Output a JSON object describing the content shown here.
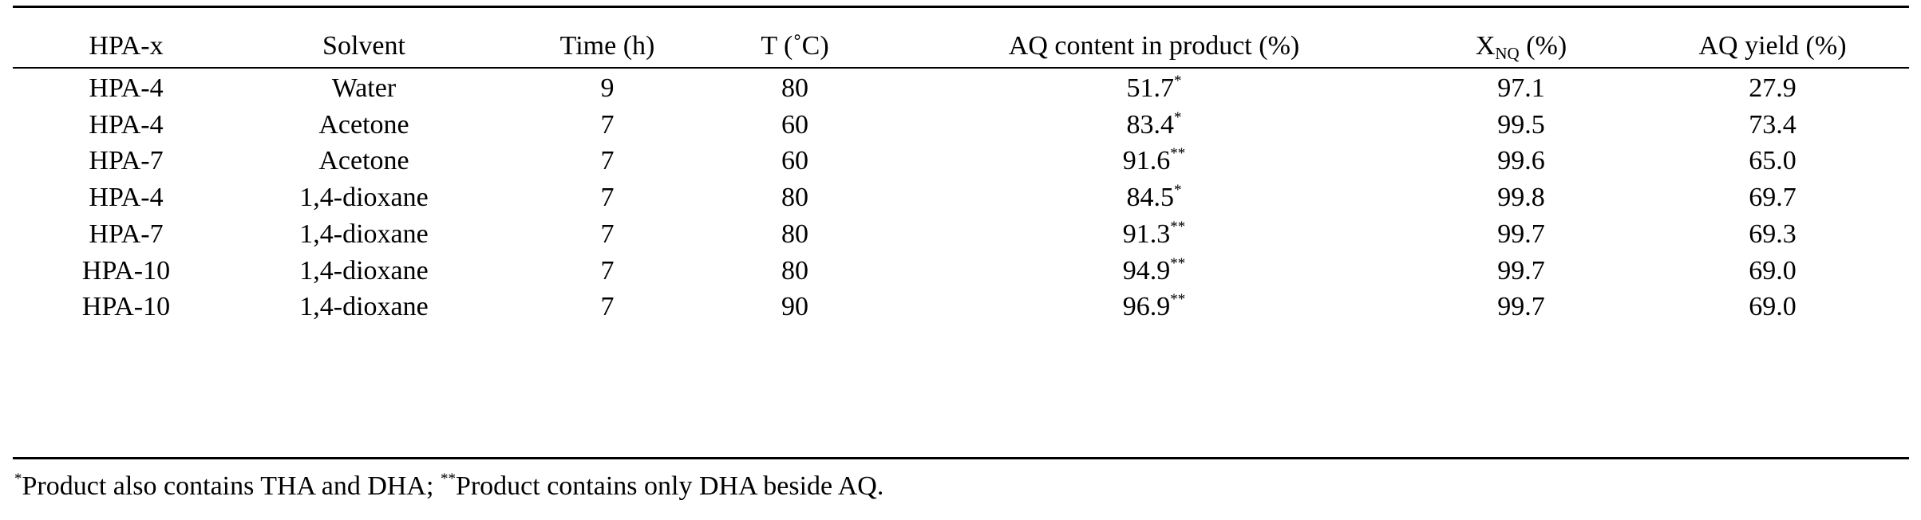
{
  "table": {
    "headers": [
      {
        "text": "HPA-x"
      },
      {
        "text": "Solvent"
      },
      {
        "text": "Time (h)"
      },
      {
        "text": "T (˚C)"
      },
      {
        "text": "AQ content in product (%)"
      },
      {
        "text": "X",
        "sub": "NQ",
        "after": " (%)"
      },
      {
        "text": "AQ yield (%)"
      }
    ],
    "rows": [
      {
        "hpa": "HPA-4",
        "solvent": "Water",
        "time": "9",
        "temp": "80",
        "aq_content": "51.7",
        "aq_mark": "*",
        "xnq": "97.1",
        "aq_yield": "27.9"
      },
      {
        "hpa": "HPA-4",
        "solvent": "Acetone",
        "time": "7",
        "temp": "60",
        "aq_content": "83.4",
        "aq_mark": "*",
        "xnq": "99.5",
        "aq_yield": "73.4"
      },
      {
        "hpa": "HPA-7",
        "solvent": "Acetone",
        "time": "7",
        "temp": "60",
        "aq_content": "91.6",
        "aq_mark": "**",
        "xnq": "99.6",
        "aq_yield": "65.0"
      },
      {
        "hpa": "HPA-4",
        "solvent": "1,4-dioxane",
        "time": "7",
        "temp": "80",
        "aq_content": "84.5",
        "aq_mark": "*",
        "xnq": "99.8",
        "aq_yield": "69.7"
      },
      {
        "hpa": "HPA-7",
        "solvent": "1,4-dioxane",
        "time": "7",
        "temp": "80",
        "aq_content": "91.3",
        "aq_mark": "**",
        "xnq": "99.7",
        "aq_yield": "69.3"
      },
      {
        "hpa": "HPA-10",
        "solvent": "1,4-dioxane",
        "time": "7",
        "temp": "80",
        "aq_content": "94.9",
        "aq_mark": "**",
        "xnq": "99.7",
        "aq_yield": "69.0"
      },
      {
        "hpa": "HPA-10",
        "solvent": "1,4-dioxane",
        "time": "7",
        "temp": "90",
        "aq_content": "96.9",
        "aq_mark": "**",
        "xnq": "99.7",
        "aq_yield": "69.0"
      }
    ]
  },
  "footnote": {
    "mark1": "*",
    "text1": "Product also contains THA and DHA; ",
    "mark2": "**",
    "text2": "Product contains only DHA beside AQ."
  }
}
